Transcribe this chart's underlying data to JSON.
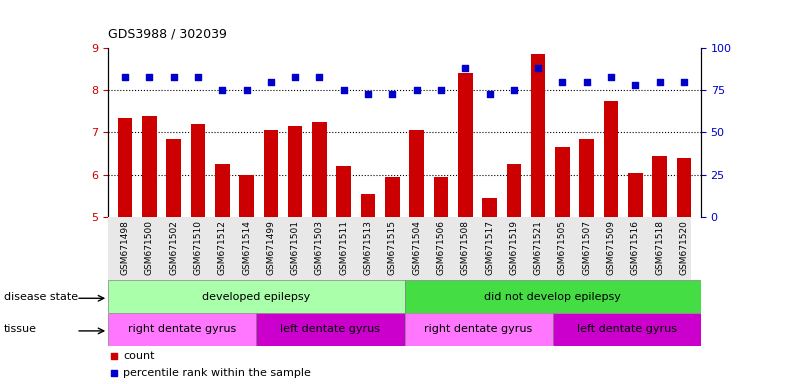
{
  "title": "GDS3988 / 302039",
  "samples": [
    "GSM671498",
    "GSM671500",
    "GSM671502",
    "GSM671510",
    "GSM671512",
    "GSM671514",
    "GSM671499",
    "GSM671501",
    "GSM671503",
    "GSM671511",
    "GSM671513",
    "GSM671515",
    "GSM671504",
    "GSM671506",
    "GSM671508",
    "GSM671517",
    "GSM671519",
    "GSM671521",
    "GSM671505",
    "GSM671507",
    "GSM671509",
    "GSM671516",
    "GSM671518",
    "GSM671520"
  ],
  "bar_values": [
    7.35,
    7.4,
    6.85,
    7.2,
    6.25,
    6.0,
    7.05,
    7.15,
    7.25,
    6.2,
    5.55,
    5.95,
    7.05,
    5.95,
    8.4,
    5.45,
    6.25,
    8.85,
    6.65,
    6.85,
    7.75,
    6.05,
    6.45,
    6.4
  ],
  "percentile_values": [
    83,
    83,
    83,
    83,
    75,
    75,
    80,
    83,
    83,
    75,
    73,
    73,
    75,
    75,
    88,
    73,
    75,
    88,
    80,
    80,
    83,
    78,
    80,
    80
  ],
  "bar_color": "#cc0000",
  "dot_color": "#0000cc",
  "ylim_left": [
    5,
    9
  ],
  "ylim_right": [
    0,
    100
  ],
  "yticks_left": [
    5,
    6,
    7,
    8,
    9
  ],
  "yticks_right": [
    0,
    25,
    50,
    75,
    100
  ],
  "grid_lines": [
    6,
    7,
    8
  ],
  "disease_state_groups": [
    {
      "label": "developed epilepsy",
      "start": 0,
      "end": 12,
      "color": "#aaffaa"
    },
    {
      "label": "did not develop epilepsy",
      "start": 12,
      "end": 24,
      "color": "#44dd44"
    }
  ],
  "tissue_groups": [
    {
      "label": "right dentate gyrus",
      "start": 0,
      "end": 6,
      "color": "#ff77ff"
    },
    {
      "label": "left dentate gyrus",
      "start": 6,
      "end": 12,
      "color": "#cc00cc"
    },
    {
      "label": "right dentate gyrus",
      "start": 12,
      "end": 18,
      "color": "#ff77ff"
    },
    {
      "label": "left dentate gyrus",
      "start": 18,
      "end": 24,
      "color": "#cc00cc"
    }
  ],
  "legend_count_color": "#cc0000",
  "legend_pct_color": "#0000cc",
  "legend_count_label": "count",
  "legend_pct_label": "percentile rank within the sample",
  "bar_width": 0.6,
  "bg_color": "#ffffff"
}
